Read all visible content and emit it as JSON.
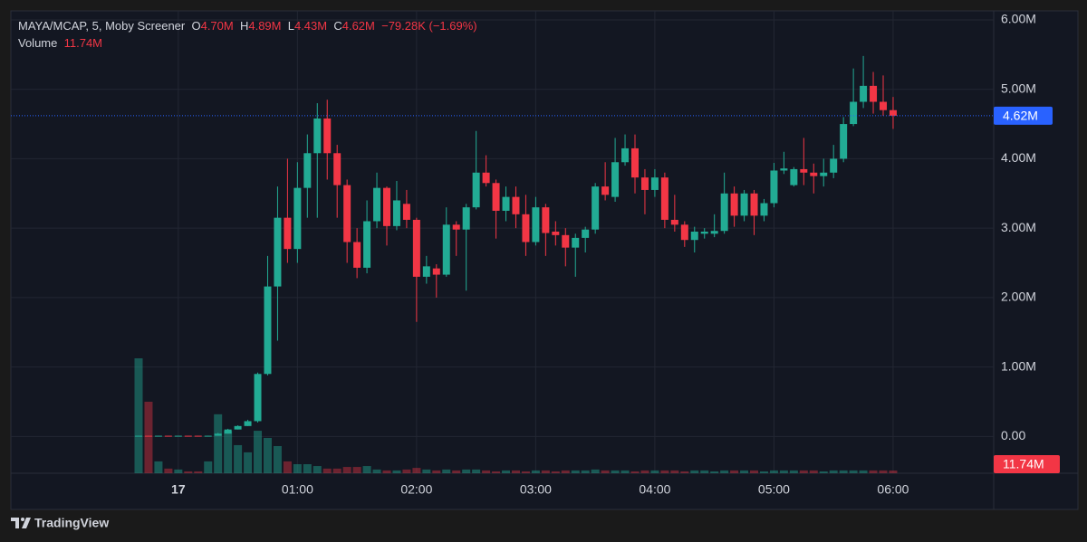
{
  "chart_data": {
    "type": "candlestick",
    "header": {
      "symbol": "MAYA/MCAP, 5, Moby Screener",
      "open_label": "O",
      "open": "4.70M",
      "high_label": "H",
      "high": "4.89M",
      "low_label": "L",
      "low": "4.43M",
      "close_label": "C",
      "close": "4.62M",
      "change": "−79.28K (−1.69%)",
      "volume_label": "Volume",
      "volume": "11.74M"
    },
    "categories": [
      null,
      null,
      null,
      null,
      "17",
      null,
      null,
      null,
      null,
      null,
      null,
      null,
      null,
      null,
      null,
      null,
      "01:00",
      null,
      null,
      null,
      null,
      null,
      null,
      null,
      null,
      null,
      null,
      null,
      "02:00",
      null,
      null,
      null,
      null,
      null,
      null,
      null,
      null,
      null,
      null,
      null,
      "03:00",
      null,
      null,
      null,
      null,
      null,
      null,
      null,
      null,
      null,
      null,
      null,
      "04:00",
      null,
      null,
      null,
      null,
      null,
      null,
      null,
      null,
      null,
      null,
      null,
      "05:00",
      null,
      null,
      null,
      null,
      null,
      null,
      null,
      null,
      null,
      null,
      null,
      "06:00"
    ],
    "open": [
      0.005,
      0.01,
      0.005,
      0.01,
      0.005,
      0.01,
      0.01,
      0.005,
      0.01,
      0.04,
      0.1,
      0.15,
      0.22,
      0.9,
      2.16,
      3.15,
      2.7,
      3.58,
      4.08,
      4.58,
      4.08,
      3.62,
      2.8,
      2.43,
      3.1,
      3.58,
      3.03,
      3.35,
      3.12,
      2.3,
      2.42,
      2.33,
      3.05,
      2.98,
      3.3,
      3.8,
      3.65,
      3.25,
      3.45,
      3.2,
      2.8,
      3.3,
      2.95,
      2.9,
      2.72,
      2.86,
      2.98,
      3.6,
      3.45,
      3.95,
      4.15,
      3.73,
      3.55,
      3.73,
      3.12,
      3.05,
      2.83,
      2.92,
      2.92,
      2.96,
      3.5,
      3.18,
      3.5,
      3.18,
      3.36,
      3.83,
      3.62,
      3.85,
      3.8,
      3.75,
      3.8,
      4.0,
      4.5,
      4.82,
      5.05,
      4.82,
      4.7
    ],
    "high": [
      0.01,
      0.01,
      0.01,
      0.01,
      0.01,
      0.01,
      0.01,
      0.01,
      0.05,
      0.11,
      0.16,
      0.24,
      0.92,
      2.6,
      3.6,
      4.0,
      3.95,
      4.35,
      4.8,
      4.85,
      4.2,
      3.7,
      3.0,
      3.4,
      3.8,
      3.6,
      3.68,
      3.55,
      3.15,
      2.6,
      2.48,
      3.3,
      3.1,
      3.35,
      4.4,
      4.05,
      3.7,
      3.6,
      3.6,
      3.48,
      3.45,
      3.35,
      3.1,
      3.0,
      2.92,
      3.02,
      3.65,
      3.95,
      4.3,
      4.35,
      4.35,
      3.85,
      3.85,
      3.8,
      3.48,
      3.1,
      3.02,
      3.0,
      3.2,
      3.8,
      3.6,
      3.55,
      3.55,
      3.42,
      3.94,
      4.1,
      3.88,
      4.3,
      3.93,
      4.0,
      4.2,
      4.6,
      5.3,
      5.48,
      5.25,
      5.2,
      4.89
    ],
    "low": [
      0.005,
      0.005,
      0.005,
      0.005,
      0.005,
      0.005,
      0.005,
      0.005,
      0.01,
      0.04,
      0.1,
      0.15,
      0.2,
      0.88,
      1.38,
      2.5,
      2.5,
      3.15,
      3.15,
      3.7,
      3.15,
      2.5,
      2.28,
      2.35,
      3.0,
      2.75,
      2.97,
      3.0,
      1.65,
      2.2,
      2.0,
      2.3,
      2.6,
      2.1,
      3.27,
      3.6,
      2.85,
      3.1,
      3.0,
      2.6,
      2.75,
      2.6,
      2.75,
      2.45,
      2.3,
      2.65,
      2.92,
      3.4,
      3.38,
      3.9,
      3.5,
      3.2,
      3.45,
      3.0,
      2.95,
      2.73,
      2.65,
      2.85,
      2.87,
      2.92,
      3.02,
      3.1,
      2.9,
      3.1,
      3.3,
      3.78,
      3.6,
      3.62,
      3.5,
      3.6,
      3.72,
      3.95,
      4.47,
      4.73,
      4.65,
      4.62,
      4.43
    ],
    "close": [
      0.01,
      0.005,
      0.01,
      0.005,
      0.01,
      0.005,
      0.005,
      0.01,
      0.04,
      0.1,
      0.15,
      0.22,
      0.9,
      2.16,
      3.15,
      2.7,
      3.58,
      4.08,
      4.58,
      4.08,
      3.62,
      2.8,
      2.43,
      3.1,
      3.58,
      3.03,
      3.4,
      3.12,
      2.3,
      2.45,
      2.33,
      3.05,
      2.98,
      3.3,
      3.8,
      3.65,
      3.25,
      3.45,
      3.2,
      2.8,
      3.3,
      2.93,
      2.9,
      2.72,
      2.86,
      2.98,
      3.6,
      3.48,
      3.95,
      4.15,
      3.73,
      3.55,
      3.73,
      3.12,
      3.05,
      2.83,
      2.95,
      2.95,
      2.96,
      3.5,
      3.18,
      3.5,
      3.18,
      3.36,
      3.83,
      3.86,
      3.85,
      3.8,
      3.75,
      3.8,
      4.0,
      4.5,
      4.82,
      5.05,
      4.82,
      4.7,
      4.62
    ],
    "volume": [
      495,
      308,
      51,
      20,
      16,
      8,
      8,
      51,
      254,
      183,
      121,
      90,
      183,
      152,
      117,
      51,
      39,
      39,
      31,
      20,
      20,
      27,
      27,
      31,
      16,
      12,
      12,
      16,
      23,
      16,
      12,
      16,
      12,
      16,
      16,
      12,
      8,
      12,
      12,
      8,
      12,
      12,
      8,
      12,
      12,
      12,
      16,
      12,
      12,
      12,
      8,
      12,
      12,
      12,
      12,
      8,
      12,
      12,
      8,
      12,
      12,
      12,
      12,
      8,
      12,
      12,
      12,
      12,
      12,
      8,
      12,
      12,
      12,
      12,
      12,
      12,
      11.74
    ],
    "up_color": "#22ab94",
    "down_color": "#f23645",
    "ylim": [
      -0.53,
      6.13
    ],
    "yticks": [
      {
        "value": 0,
        "label": "0.00"
      },
      {
        "value": 1,
        "label": "1.00M"
      },
      {
        "value": 2,
        "label": "2.00M"
      },
      {
        "value": 3,
        "label": "3.00M"
      },
      {
        "value": 4,
        "label": "4.00M"
      },
      {
        "value": 5,
        "label": "5.00M"
      },
      {
        "value": 6,
        "label": "6.00M"
      }
    ],
    "grid": true,
    "footer": "TradingView"
  }
}
